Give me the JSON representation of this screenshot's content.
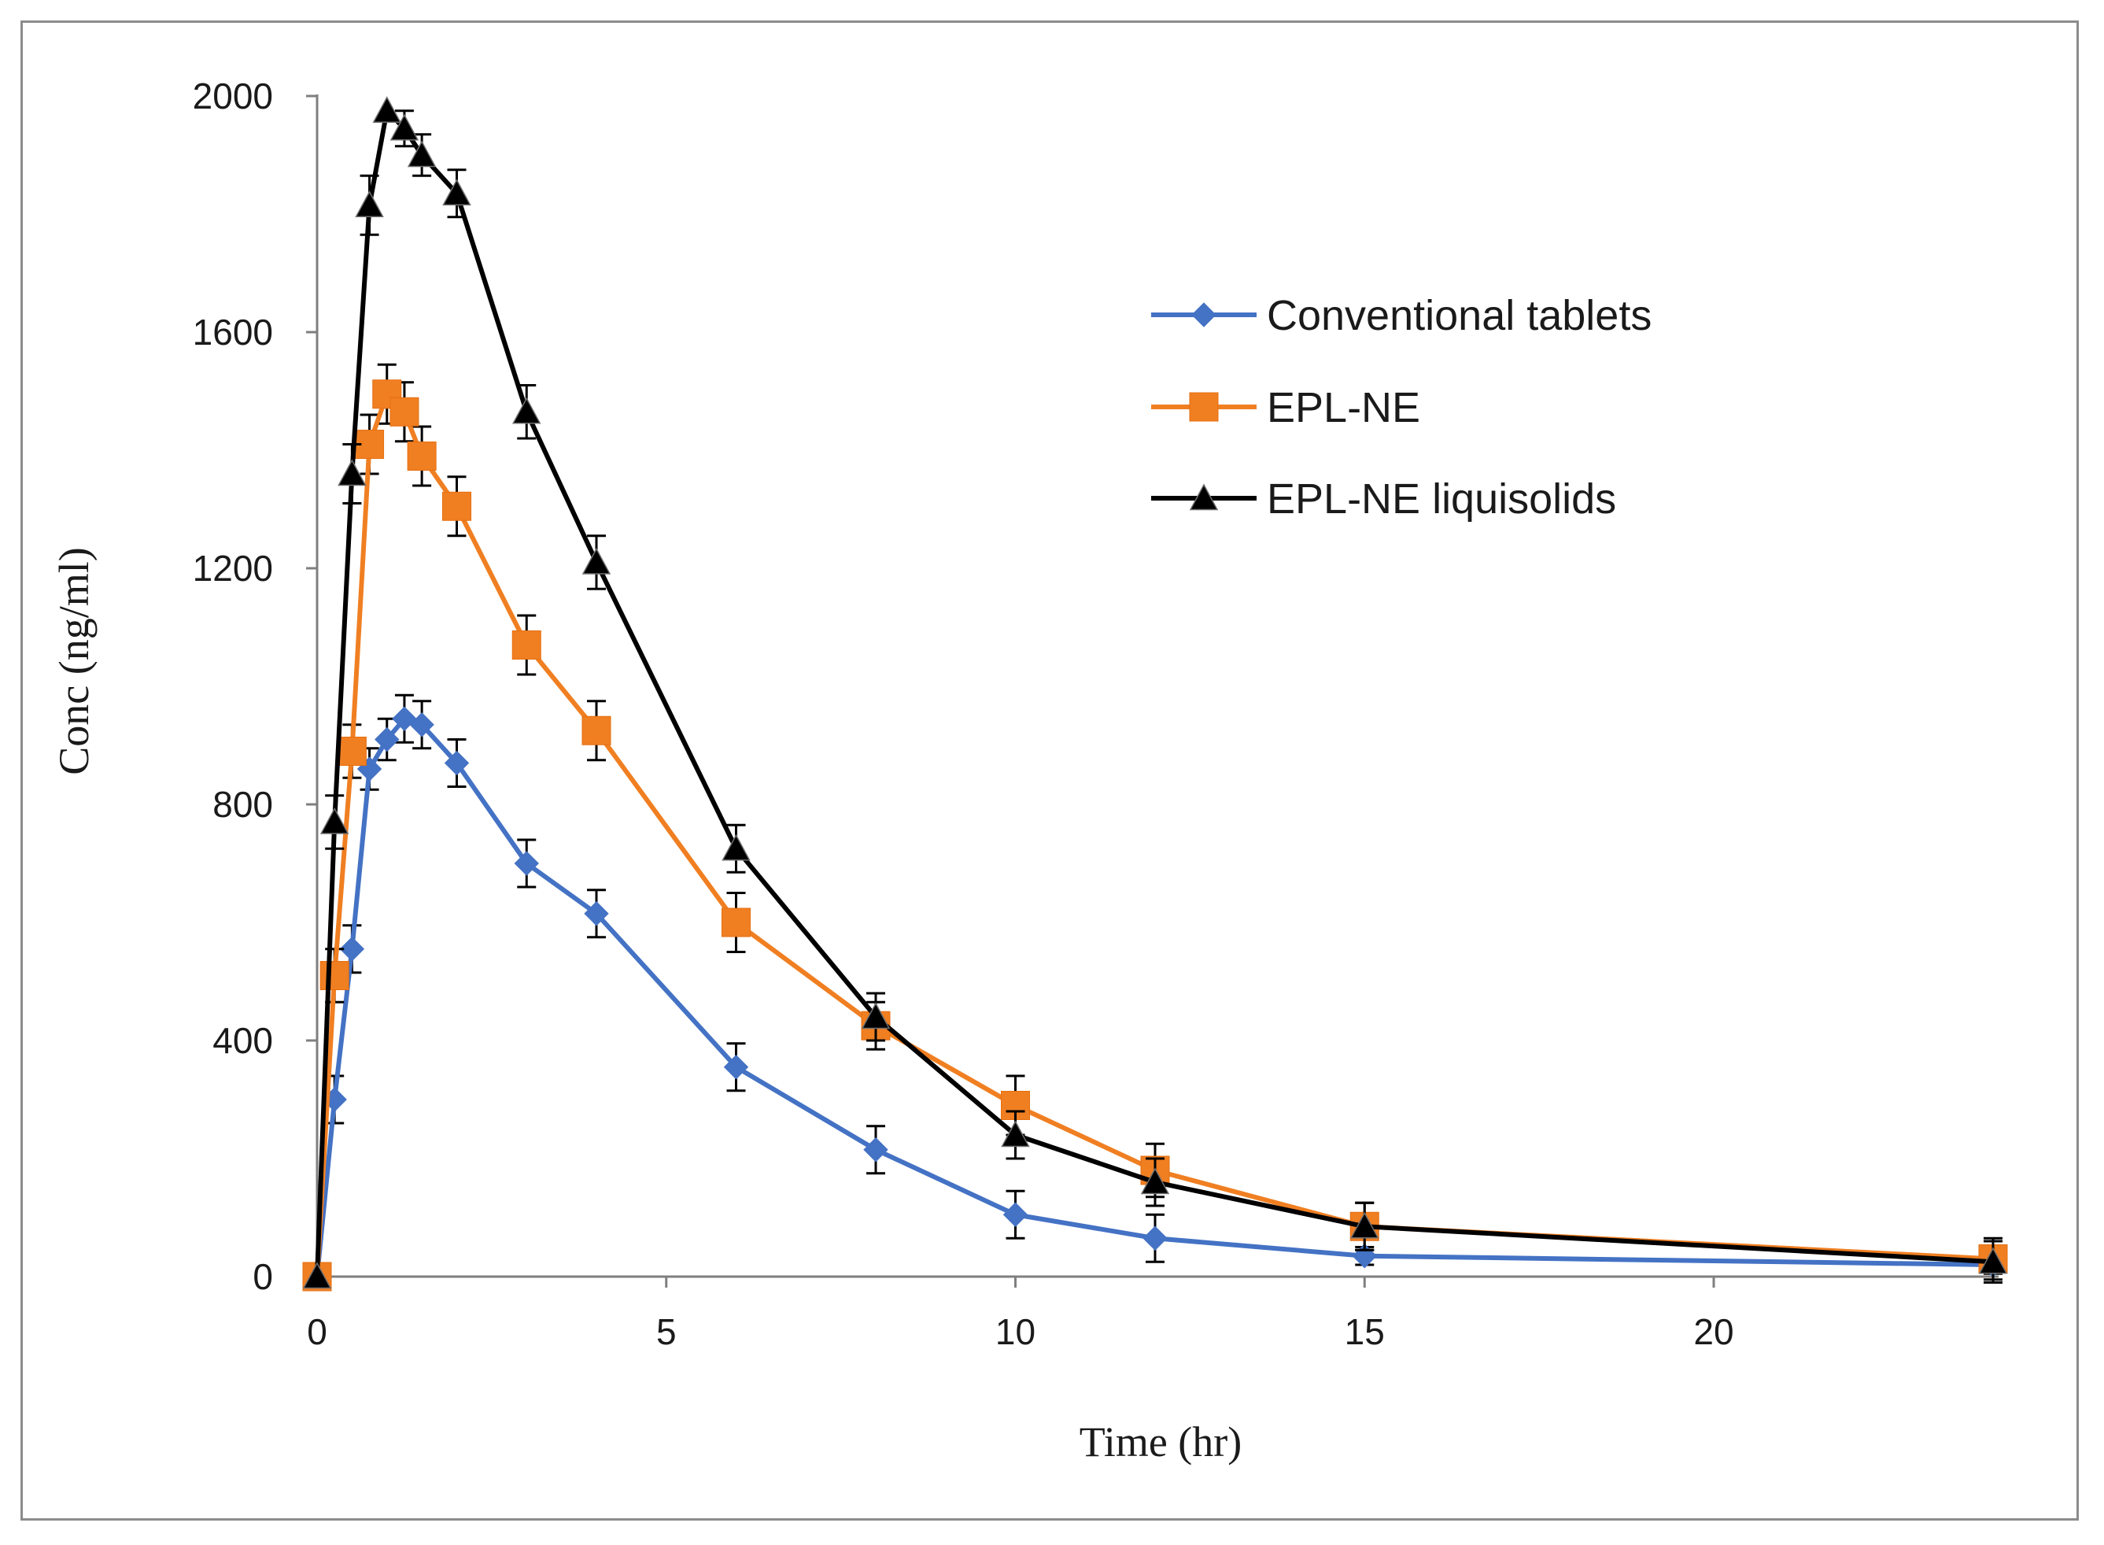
{
  "chart_data": {
    "type": "line",
    "title": "",
    "xlabel": "Time (hr)",
    "ylabel": "Conc (ng/ml)",
    "xlim": [
      0,
      24
    ],
    "ylim": [
      0,
      2000
    ],
    "xticks": [
      0,
      5,
      10,
      15,
      20
    ],
    "yticks": [
      0,
      400,
      800,
      1200,
      1600,
      2000
    ],
    "grid": false,
    "legend_position": "upper-right",
    "x": [
      0,
      0.25,
      0.5,
      0.75,
      1,
      1.25,
      1.5,
      2,
      3,
      4,
      6,
      8,
      10,
      12,
      15,
      24
    ],
    "series": [
      {
        "name": "Conventional tablets",
        "color": "#4472c4",
        "marker": "diamond",
        "values": [
          0,
          300,
          555,
          860,
          910,
          945,
          935,
          870,
          700,
          615,
          355,
          215,
          105,
          65,
          35,
          20
        ],
        "errors": [
          0,
          40,
          40,
          35,
          35,
          40,
          40,
          40,
          40,
          40,
          40,
          40,
          40,
          40,
          15,
          15
        ]
      },
      {
        "name": "EPL-NE",
        "color": "#f07f22",
        "marker": "square",
        "values": [
          0,
          510,
          890,
          1410,
          1495,
          1465,
          1390,
          1305,
          1070,
          925,
          600,
          425,
          290,
          180,
          85,
          30
        ],
        "errors": [
          0,
          45,
          45,
          50,
          50,
          50,
          50,
          50,
          50,
          50,
          50,
          40,
          50,
          45,
          40,
          35
        ]
      },
      {
        "name": "EPL-NE liquisolids",
        "color": "#000000",
        "marker": "triangle",
        "values": [
          0,
          770,
          1360,
          1815,
          1975,
          1945,
          1900,
          1835,
          1465,
          1210,
          725,
          440,
          240,
          160,
          85,
          25
        ],
        "errors": [
          0,
          45,
          50,
          50,
          0,
          30,
          35,
          40,
          45,
          45,
          40,
          40,
          40,
          40,
          40,
          35
        ]
      }
    ]
  }
}
